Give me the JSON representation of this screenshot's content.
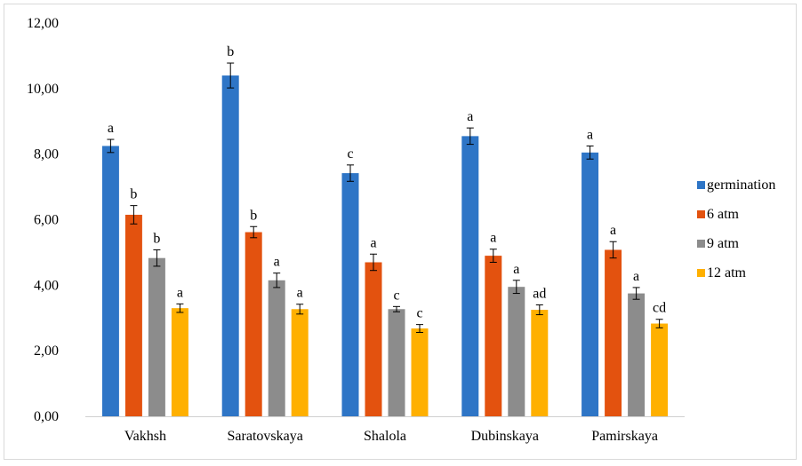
{
  "chart_data": {
    "type": "bar",
    "title": "",
    "xlabel": "",
    "ylabel": "",
    "ylim": [
      0,
      12
    ],
    "yticks": [
      "0,00",
      "2,00",
      "4,00",
      "6,00",
      "8,00",
      "10,00",
      "12,00"
    ],
    "legend_position": "right",
    "categories": [
      "Vakhsh",
      "Saratovskaya",
      "Shalola",
      "Dubinskaya",
      "Pamirskaya"
    ],
    "series": [
      {
        "name": "germination",
        "color": "#2E75C6",
        "values": [
          8.25,
          10.4,
          7.42,
          8.55,
          8.05
        ],
        "errors": [
          0.2,
          0.38,
          0.25,
          0.25,
          0.2
        ],
        "labels": [
          "a",
          "b",
          "c",
          "a",
          "a"
        ]
      },
      {
        "name": "6  atm",
        "color": "#E3520F",
        "values": [
          6.15,
          5.62,
          4.7,
          4.9,
          5.08
        ],
        "errors": [
          0.28,
          0.17,
          0.25,
          0.2,
          0.25
        ],
        "labels": [
          "b",
          "b",
          "a",
          "a",
          "a"
        ]
      },
      {
        "name": "9  atm",
        "color": "#8C8C8C",
        "values": [
          4.83,
          4.15,
          3.27,
          3.95,
          3.75
        ],
        "errors": [
          0.25,
          0.22,
          0.08,
          0.2,
          0.18
        ],
        "labels": [
          "b",
          "a",
          "c",
          "a",
          "a"
        ]
      },
      {
        "name": "12 atm",
        "color": "#FFB000",
        "values": [
          3.3,
          3.27,
          2.68,
          3.25,
          2.83
        ],
        "errors": [
          0.13,
          0.15,
          0.12,
          0.15,
          0.13
        ],
        "labels": [
          "a",
          "a",
          "c",
          "ad",
          "cd"
        ]
      }
    ]
  }
}
